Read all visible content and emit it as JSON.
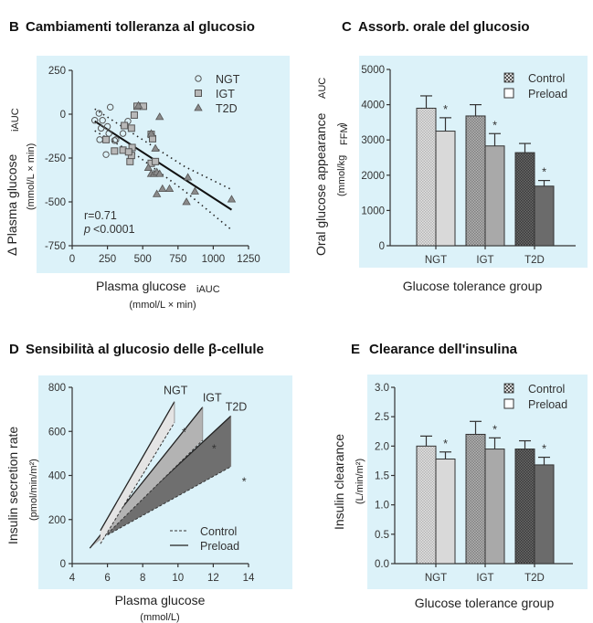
{
  "panels": {
    "B": {
      "letter": "B",
      "title": "Cambiamenti tolleranza al glucosio"
    },
    "C": {
      "letter": "C",
      "title": "Assorb. orale del glucosio"
    },
    "D": {
      "letter": "D",
      "title": "Sensibilità al glucosio delle β-cellule"
    },
    "E": {
      "letter": "E",
      "title": "Clearance dell'insulina"
    }
  },
  "colors": {
    "panel_bg": "#dcf2f9",
    "ngt": "#d9d9d9",
    "igt": "#a9a9a9",
    "t2d": "#6b6b6b"
  },
  "chart_data": [
    {
      "id": "B",
      "type": "scatter",
      "xlabel": "Plasma glucose",
      "xlabel_sub": "iAUC",
      "xlabel_units": "(mmol/L × min)",
      "ylabel": "Δ Plasma glucose",
      "ylabel_sub": "iAUC",
      "ylabel_units": "(mmol/L × min)",
      "xlim": [
        0,
        1250
      ],
      "ylim": [
        -750,
        250
      ],
      "xticks": [
        0,
        250,
        500,
        750,
        1000,
        1250
      ],
      "yticks": [
        250,
        0,
        -250,
        -500,
        -750
      ],
      "legend_position": "top-right",
      "annotation": {
        "r": "r=0.71",
        "p_letter": "p",
        "p_rest": "<0.0001"
      },
      "series": [
        {
          "name": "NGT",
          "marker": "circle",
          "points": [
            [
              160,
              -35
            ],
            [
              190,
              5
            ],
            [
              215,
              -35
            ],
            [
              270,
              40
            ],
            [
              205,
              -80
            ],
            [
              250,
              -70
            ],
            [
              260,
              -110
            ],
            [
              195,
              -145
            ],
            [
              240,
              -230
            ],
            [
              300,
              -150
            ],
            [
              360,
              -110
            ],
            [
              395,
              -40
            ],
            [
              310,
              -145
            ]
          ]
        },
        {
          "name": "IGT",
          "marker": "square",
          "points": [
            [
              240,
              -145
            ],
            [
              300,
              -210
            ],
            [
              360,
              -205
            ],
            [
              370,
              -65
            ],
            [
              420,
              -80
            ],
            [
              440,
              -5
            ],
            [
              460,
              45
            ],
            [
              505,
              45
            ],
            [
              410,
              -270
            ],
            [
              420,
              -235
            ],
            [
              425,
              -190
            ],
            [
              400,
              -215
            ],
            [
              560,
              -115
            ],
            [
              570,
              -140
            ],
            [
              560,
              -280
            ],
            [
              590,
              -270
            ]
          ]
        },
        {
          "name": "T2D",
          "marker": "triangle",
          "points": [
            [
              470,
              50
            ],
            [
              620,
              -15
            ],
            [
              560,
              -110
            ],
            [
              590,
              -195
            ],
            [
              540,
              -305
            ],
            [
              560,
              -340
            ],
            [
              580,
              -340
            ],
            [
              600,
              -330
            ],
            [
              620,
              -340
            ],
            [
              640,
              -425
            ],
            [
              600,
              -455
            ],
            [
              690,
              -425
            ],
            [
              820,
              -360
            ],
            [
              870,
              -440
            ],
            [
              810,
              -500
            ],
            [
              1130,
              -485
            ]
          ]
        }
      ],
      "regression": [
        [
          160,
          -40
        ],
        [
          1130,
          -545
        ]
      ],
      "ci_upper": [
        [
          160,
          30
        ],
        [
          450,
          -120
        ],
        [
          800,
          -300
        ],
        [
          1130,
          -430
        ]
      ],
      "ci_lower": [
        [
          160,
          -95
        ],
        [
          450,
          -230
        ],
        [
          800,
          -440
        ],
        [
          1130,
          -660
        ]
      ]
    },
    {
      "id": "C",
      "type": "bar",
      "ylabel": "Oral glucose appearance",
      "ylabel_sub": "AUC",
      "ylabel_units": "(mmol/kg",
      "ylabel_units_sub": "FFM",
      "ylabel_units_close": ")",
      "xlabel": "Glucose tolerance group",
      "categories": [
        "NGT",
        "IGT",
        "T2D"
      ],
      "ylim": [
        0,
        5000
      ],
      "yticks": [
        0,
        1000,
        2000,
        3000,
        4000,
        5000
      ],
      "legend_position": "top-right",
      "series": [
        {
          "name": "Control",
          "values": [
            3900,
            3680,
            2640
          ],
          "errors": [
            350,
            320,
            260
          ]
        },
        {
          "name": "Preload",
          "values": [
            3250,
            2830,
            1690
          ],
          "errors": [
            380,
            350,
            160
          ],
          "significance": [
            "*",
            "*",
            "*"
          ]
        }
      ]
    },
    {
      "id": "D",
      "type": "line",
      "ylabel": "Insulin secretion rate",
      "ylabel_units": "(pmol/min/m²)",
      "xlabel": "Plasma glucose",
      "xlabel_units": "(mmol/L)",
      "xlim": [
        4,
        14
      ],
      "ylim": [
        0,
        800
      ],
      "xticks": [
        4,
        6,
        8,
        10,
        12,
        14
      ],
      "yticks": [
        0,
        200,
        400,
        600,
        800
      ],
      "legend_position": "bottom-right",
      "legend": [
        {
          "name": "Control",
          "style": "dashed"
        },
        {
          "name": "Preload",
          "style": "solid"
        }
      ],
      "groups": [
        {
          "name": "NGT",
          "control": [
            [
              5.6,
              90
            ],
            [
              9.8,
              640
            ]
          ],
          "preload": [
            [
              5.6,
              150
            ],
            [
              9.8,
              735
            ]
          ],
          "significance": "*"
        },
        {
          "name": "IGT",
          "control": [
            [
              5.8,
              120
            ],
            [
              11.4,
              560
            ]
          ],
          "preload": [
            [
              5.0,
              70
            ],
            [
              11.4,
              710
            ]
          ],
          "significance": "*"
        },
        {
          "name": "T2D",
          "control": [
            [
              6.0,
              130
            ],
            [
              13.0,
              440
            ]
          ],
          "preload": [
            [
              6.0,
              150
            ],
            [
              13.0,
              670
            ]
          ],
          "significance": "*"
        }
      ]
    },
    {
      "id": "E",
      "type": "bar",
      "ylabel": "Insulin clearance",
      "ylabel_units": "(L/min/m²)",
      "xlabel": "Glucose tolerance group",
      "categories": [
        "NGT",
        "IGT",
        "T2D"
      ],
      "ylim": [
        0,
        3.0
      ],
      "yticks": [
        "0.0",
        "0.5",
        "1.0",
        "1.5",
        "2.0",
        "2.5",
        "3.0"
      ],
      "legend_position": "top-right",
      "series": [
        {
          "name": "Control",
          "values": [
            2.0,
            2.2,
            1.95
          ],
          "errors": [
            0.17,
            0.22,
            0.14
          ]
        },
        {
          "name": "Preload",
          "values": [
            1.78,
            1.95,
            1.68
          ],
          "errors": [
            0.12,
            0.19,
            0.13
          ],
          "significance": [
            "*",
            "*",
            "*"
          ]
        }
      ]
    }
  ]
}
